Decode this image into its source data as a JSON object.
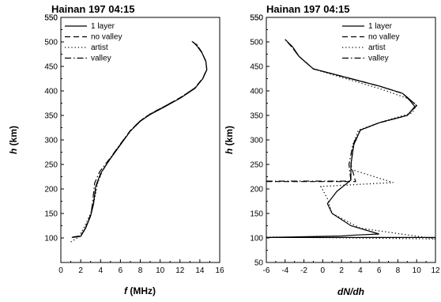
{
  "chart_data": [
    {
      "type": "line",
      "title": "Hainan 197 04:15",
      "xlabel": "f (MHz)",
      "ylabel": "h (km)",
      "xlim": [
        0,
        16
      ],
      "ylim": [
        50,
        550
      ],
      "xticks": [
        0,
        2,
        4,
        6,
        8,
        10,
        12,
        14,
        16
      ],
      "yticks": [
        100,
        150,
        200,
        250,
        300,
        350,
        400,
        450,
        500,
        550
      ],
      "legend_position": "top-left",
      "series": [
        {
          "name": "1 layer",
          "style": "solid",
          "x": [
            1.1,
            2.0,
            2.5,
            3.0,
            3.3,
            3.5,
            4.0,
            5.0,
            6.0,
            7.0,
            8.0,
            9.0,
            10.5,
            12.0,
            13.5,
            14.3,
            14.7,
            14.6,
            14.2,
            13.7,
            13.3
          ],
          "y": [
            101,
            103,
            120,
            145,
            170,
            205,
            232,
            262,
            290,
            318,
            338,
            352,
            368,
            385,
            405,
            425,
            443,
            460,
            478,
            492,
            500
          ]
        },
        {
          "name": "no valley",
          "style": "dashed",
          "x": [
            1.2,
            2.0,
            2.5,
            3.0,
            3.3,
            3.6,
            4.1,
            5.0,
            6.0,
            7.0,
            8.0,
            9.0,
            10.5,
            12.0,
            13.5,
            14.3,
            14.7,
            14.6,
            14.2,
            13.7,
            13.1
          ],
          "y": [
            102,
            104,
            122,
            148,
            175,
            208,
            234,
            263,
            291,
            319,
            339,
            353,
            369,
            386,
            406,
            426,
            444,
            461,
            479,
            494,
            502
          ]
        },
        {
          "name": "artist",
          "style": "dotted",
          "x": [
            1.0,
            1.8,
            2.4,
            3.0,
            3.4,
            3.7,
            4.2,
            5.1,
            6.1,
            7.1,
            8.1,
            9.1,
            10.6
          ],
          "y": [
            92,
            102,
            124,
            150,
            180,
            212,
            238,
            266,
            293,
            320,
            340,
            354,
            370
          ]
        },
        {
          "name": "valley",
          "style": "dashdot",
          "x": [
            1.2,
            2.0,
            2.5,
            3.0,
            3.2,
            3.4,
            3.9,
            5.0,
            6.0,
            7.0,
            8.0,
            9.0,
            10.5,
            12.0,
            13.5,
            14.3,
            14.7,
            14.6,
            14.2,
            13.7,
            13.2
          ],
          "y": [
            102,
            104,
            121,
            146,
            172,
            212,
            235,
            264,
            292,
            319,
            339,
            353,
            369,
            386,
            406,
            426,
            444,
            461,
            479,
            494,
            501
          ]
        }
      ]
    },
    {
      "type": "line",
      "title": "Hainan 197 04:15",
      "xlabel": "dN/dh",
      "ylabel": "h (km)",
      "xlim": [
        -6,
        12
      ],
      "ylim": [
        50,
        550
      ],
      "xticks": [
        -6,
        -4,
        -2,
        0,
        2,
        4,
        6,
        8,
        10,
        12
      ],
      "yticks": [
        50,
        100,
        150,
        200,
        250,
        300,
        350,
        400,
        450,
        500,
        550
      ],
      "legend_position": "top-right",
      "series": [
        {
          "name": "1 layer",
          "style": "solid",
          "x": [
            12.0,
            -6.0,
            2.0,
            3.5,
            6.0,
            3.0,
            1.0,
            0.5,
            1.5,
            3.0,
            3.0,
            3.3,
            4.0,
            6.0,
            9.0,
            9.8,
            9.3,
            8.5,
            6.0,
            3.0,
            -1.0,
            -2.5,
            -3.2,
            -4.0
          ],
          "y": [
            101,
            101,
            104,
            106,
            108,
            125,
            150,
            170,
            195,
            218,
            250,
            290,
            320,
            335,
            350,
            368,
            380,
            395,
            410,
            425,
            445,
            470,
            490,
            505
          ]
        },
        {
          "name": "no valley",
          "style": "dashed",
          "x": [
            -6.0,
            3.5,
            3.0,
            3.3,
            4.0,
            6.0,
            9.0,
            10.0,
            9.3,
            8.5,
            6.0,
            3.0,
            -1.0,
            -2.5,
            -3.3,
            -4.0
          ],
          "y": [
            215,
            215,
            250,
            290,
            320,
            335,
            350,
            370,
            382,
            395,
            410,
            425,
            445,
            470,
            490,
            505
          ]
        },
        {
          "name": "artist",
          "style": "dotted",
          "x": [
            -6.0,
            12.0,
            4.0,
            1.0,
            0.5,
            -0.2,
            7.5,
            3.0,
            3.2,
            3.8,
            6.5,
            9.5,
            10.0,
            9.0,
            6.0,
            3.0,
            -1.0
          ],
          "y": [
            102,
            98,
            120,
            150,
            180,
            205,
            213,
            240,
            290,
            320,
            338,
            355,
            372,
            385,
            405,
            422,
            445
          ]
        },
        {
          "name": "valley",
          "style": "dashdot",
          "x": [
            -6.0,
            3.0,
            2.8,
            3.2,
            4.0,
            6.0,
            9.0,
            10.0,
            9.3,
            8.5,
            6.0,
            3.0,
            -1.0,
            -2.5,
            -3.3,
            -4.0
          ],
          "y": [
            216,
            216,
            250,
            290,
            320,
            335,
            350,
            370,
            382,
            395,
            410,
            425,
            445,
            470,
            490,
            505
          ]
        }
      ]
    }
  ]
}
